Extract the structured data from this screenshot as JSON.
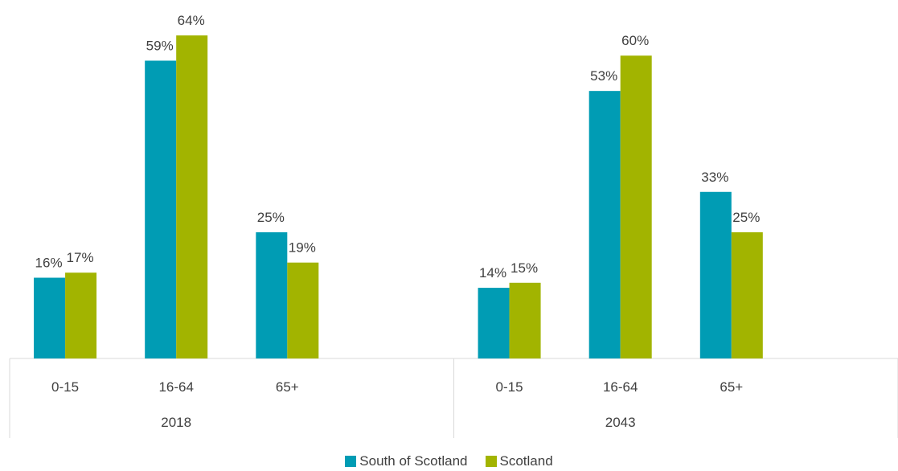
{
  "chart_data": {
    "type": "bar",
    "groups": [
      {
        "label": "2018",
        "categories": [
          "0-15",
          "16-64",
          "65+"
        ]
      },
      {
        "label": "2043",
        "categories": [
          "0-15",
          "16-64",
          "65+"
        ]
      }
    ],
    "series": [
      {
        "name": "South of Scotland",
        "color": "#009cb4",
        "values": [
          [
            16,
            59,
            25
          ],
          [
            14,
            53,
            33
          ]
        ],
        "labels": [
          [
            "16%",
            "59%",
            "25%"
          ],
          [
            "14%",
            "53%",
            "33%"
          ]
        ]
      },
      {
        "name": "Scotland",
        "color": "#a2b400",
        "values": [
          [
            17,
            64,
            19
          ],
          [
            15,
            60,
            25
          ]
        ],
        "labels": [
          [
            "17%",
            "64%",
            "19%"
          ],
          [
            "15%",
            "60%",
            "25%"
          ]
        ]
      }
    ],
    "ylim": [
      0,
      64
    ],
    "legend_position": "bottom",
    "grid": false
  }
}
